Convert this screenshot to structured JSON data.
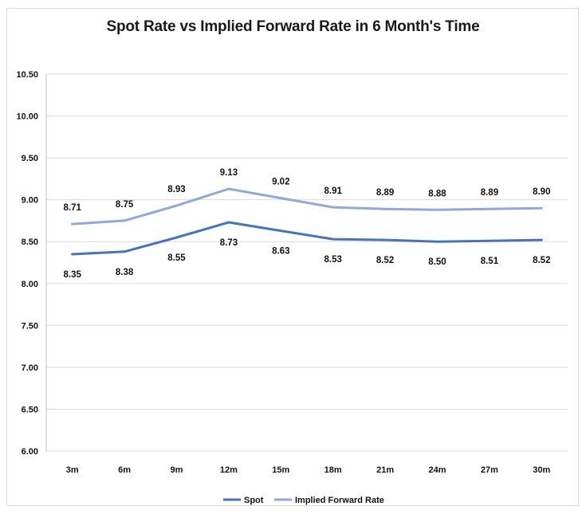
{
  "chart_data": {
    "type": "line",
    "title": "Spot Rate vs Implied Forward Rate in 6 Month's Time",
    "xlabel": "",
    "ylabel": "",
    "categories": [
      "3m",
      "6m",
      "9m",
      "12m",
      "15m",
      "18m",
      "21m",
      "24m",
      "27m",
      "30m"
    ],
    "ylim": [
      6.0,
      10.5
    ],
    "yticks": [
      "6.00",
      "6.50",
      "7.00",
      "7.50",
      "8.00",
      "8.50",
      "9.00",
      "9.50",
      "10.00",
      "10.50"
    ],
    "grid": true,
    "legend_position": "bottom",
    "series": [
      {
        "name": "Spot",
        "color": "#4472c4",
        "labels_position": "below",
        "values": [
          8.35,
          8.38,
          8.55,
          8.73,
          8.63,
          8.53,
          8.52,
          8.5,
          8.51,
          8.52
        ],
        "labels": [
          "8.35",
          "8.38",
          "8.55",
          "8.73",
          "8.63",
          "8.53",
          "8.52",
          "8.50",
          "8.51",
          "8.52"
        ]
      },
      {
        "name": "Implied Forward Rate",
        "color": "#8eaadb",
        "labels_position": "above",
        "values": [
          8.71,
          8.75,
          8.93,
          9.13,
          9.02,
          8.91,
          8.89,
          8.88,
          8.89,
          8.9
        ],
        "labels": [
          "8.71",
          "8.75",
          "8.93",
          "9.13",
          "9.02",
          "8.91",
          "8.89",
          "8.88",
          "8.89",
          "8.90"
        ]
      }
    ]
  }
}
